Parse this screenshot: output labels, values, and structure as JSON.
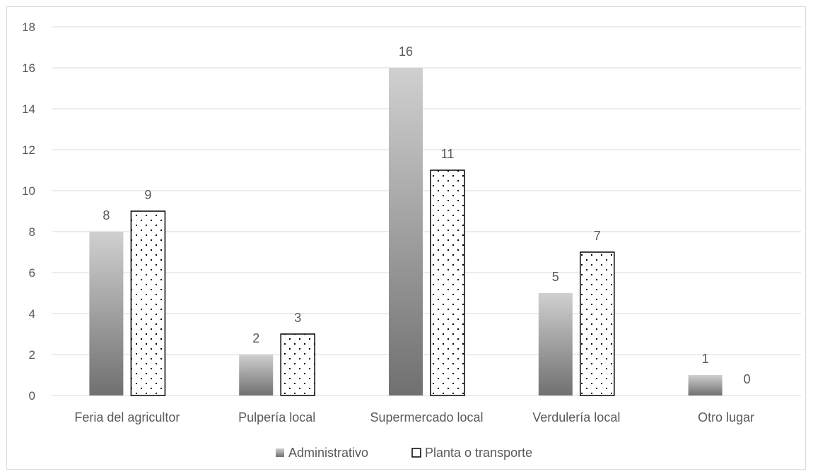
{
  "chart_data": {
    "type": "bar",
    "categories": [
      "Feria del agricultor",
      "Pulpería local",
      "Supermercado local",
      "Verdulería local",
      "Otro lugar"
    ],
    "series": [
      {
        "name": "Administrativo",
        "values": [
          8,
          2,
          16,
          5,
          1
        ],
        "fill": "gradient-gray"
      },
      {
        "name": "Planta o transporte",
        "values": [
          9,
          3,
          11,
          7,
          0
        ],
        "fill": "dotted-pattern"
      }
    ],
    "ylim": [
      0,
      18
    ],
    "yticks": [
      0,
      2,
      4,
      6,
      8,
      10,
      12,
      14,
      16,
      18
    ],
    "grid": true,
    "legend": "bottom",
    "data_labels": true
  },
  "colors": {
    "grid": "#d9d9d9",
    "text": "#595959",
    "gradient_top": "#d0d0d0",
    "gradient_bottom": "#707070",
    "outline": "#000000"
  }
}
